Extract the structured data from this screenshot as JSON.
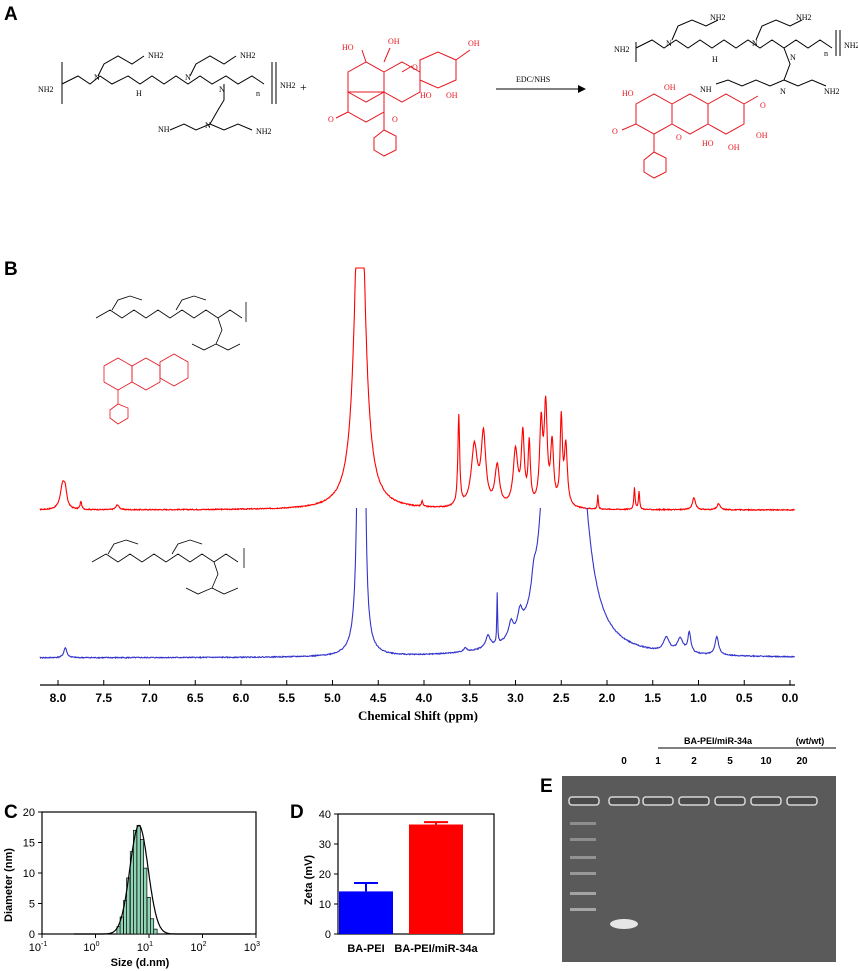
{
  "panels": {
    "A": {
      "letter": "A",
      "reagent": "EDC/NHS",
      "plus": "+",
      "labels": {
        "nh2": "NH2",
        "nh": "NH",
        "n": "N",
        "h": "H",
        "n_sub": "n",
        "o": "O",
        "oh": "OH",
        "ho": "HO"
      }
    },
    "B": {
      "letter": "B",
      "xlabel": "Chemical Shift (ppm)",
      "ticks": [
        "8.0",
        "7.5",
        "7.0",
        "6.5",
        "6.0",
        "5.5",
        "5.0",
        "4.5",
        "4.0",
        "3.5",
        "3.0",
        "2.5",
        "2.0",
        "1.5",
        "1.0",
        "0.5",
        "0.0"
      ],
      "colors": {
        "conjugate": "#ff0000",
        "pei": "#3333cc"
      }
    },
    "C": {
      "letter": "C",
      "ylabel": "Diameter (nm)",
      "xlabel": "Size (d.nm)",
      "yticks": [
        "0",
        "5",
        "10",
        "15",
        "20"
      ],
      "xticks": [
        {
          "base": "10",
          "exp": "-1"
        },
        {
          "base": "10",
          "exp": "0"
        },
        {
          "base": "10",
          "exp": "1"
        },
        {
          "base": "10",
          "exp": "2"
        },
        {
          "base": "10",
          "exp": "3"
        }
      ]
    },
    "D": {
      "letter": "D",
      "ylabel": "Zeta (mV)",
      "yticks": [
        "0",
        "10",
        "20",
        "30",
        "40"
      ]
    },
    "E": {
      "letter": "E",
      "header": "BA-PEI/miR-34a",
      "unit": "(wt/wt)",
      "lanes": [
        "0",
        "1",
        "2",
        "5",
        "10",
        "20"
      ]
    }
  },
  "chart_data": [
    {
      "panel": "C",
      "type": "bar",
      "title": "",
      "xlabel": "Size (d.nm)",
      "ylabel": "Diameter (nm)",
      "xscale": "log",
      "xlim": [
        0.1,
        1000
      ],
      "ylim": [
        0,
        20
      ],
      "x": [
        2.7,
        3.1,
        3.6,
        4.1,
        4.8,
        5.5,
        6.4,
        7.4,
        8.5,
        9.9,
        11.4,
        13.2
      ],
      "values": [
        1.2,
        2.8,
        5.5,
        9.2,
        13.5,
        17.0,
        17.8,
        15.5,
        10.8,
        6.0,
        2.5,
        0.8
      ],
      "fit_peak": {
        "x": 6.5,
        "y": 17.8
      }
    },
    {
      "panel": "D",
      "type": "bar",
      "title": "",
      "xlabel": "",
      "ylabel": "Zeta (mV)",
      "ylim": [
        0,
        40
      ],
      "categories": [
        "BA-PEI",
        "BA-PEI/miR-34a"
      ],
      "values": [
        14.2,
        36.5
      ],
      "errors": [
        2.8,
        0.8
      ],
      "colors": [
        "#0000ff",
        "#ff0000"
      ]
    }
  ]
}
